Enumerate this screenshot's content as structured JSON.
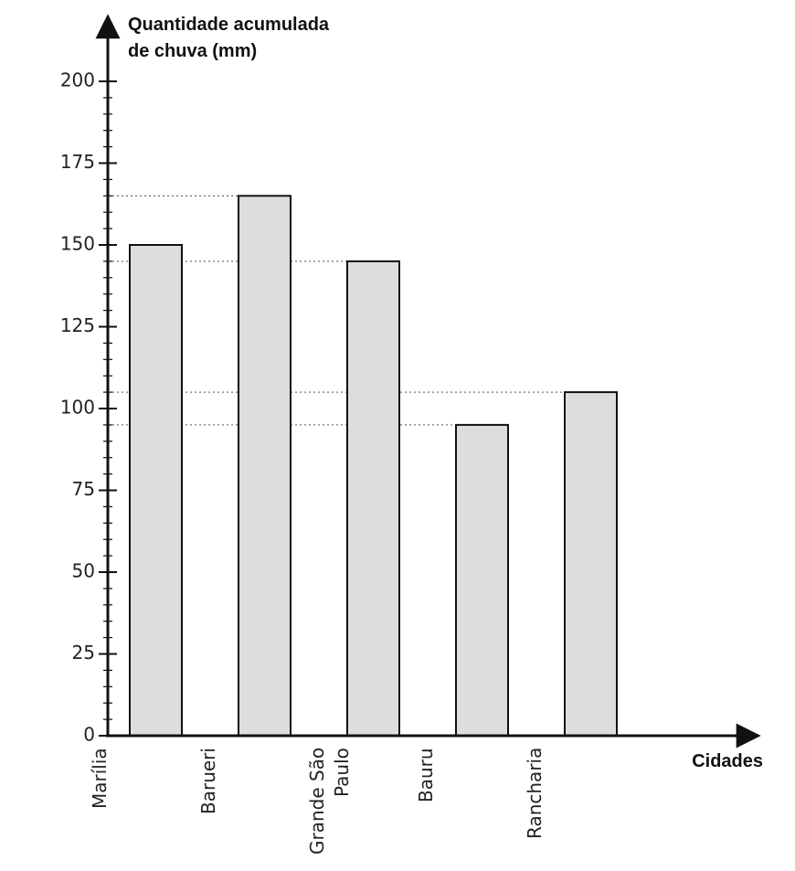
{
  "chart_data": {
    "type": "bar",
    "y_label": [
      "Quantidade acumulada",
      "de chuva (mm)"
    ],
    "x_label": "Cidades",
    "categories": [
      "Marília",
      "Barueri",
      "Grande São Paulo",
      "Bauru",
      "Rancharia"
    ],
    "values": [
      150,
      165,
      145,
      95,
      105
    ],
    "color": "#dddddd",
    "ylim": [
      0,
      200
    ],
    "yticks": [
      0,
      25,
      50,
      75,
      100,
      125,
      150,
      175,
      200
    ],
    "guide_lines": true
  }
}
